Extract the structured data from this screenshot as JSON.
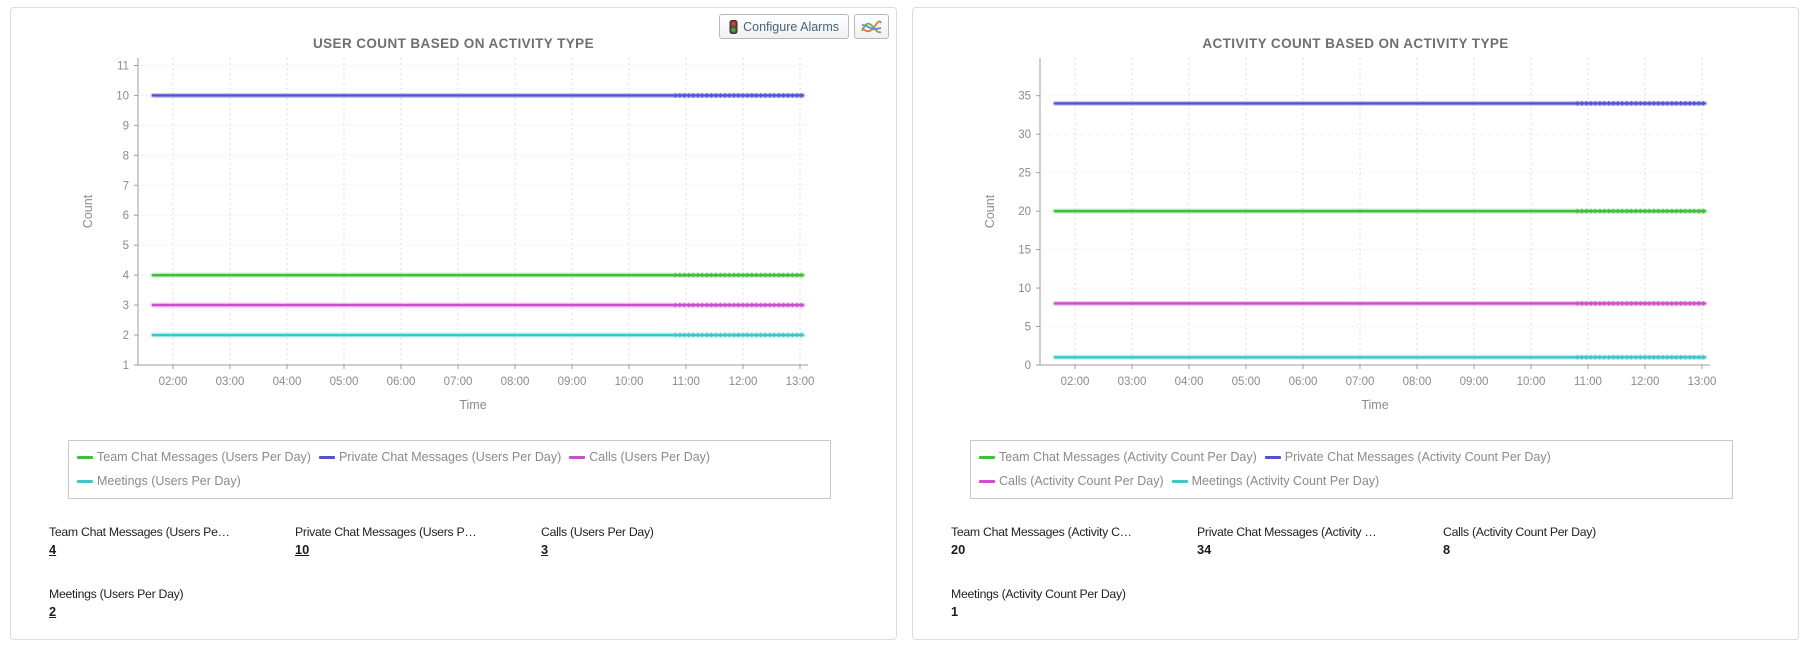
{
  "toolbar": {
    "configure_alarms": "Configure Alarms",
    "icons": {
      "alarm": "traffic-light-icon",
      "chart_type": "spline-chart-icon"
    }
  },
  "colors": {
    "green": "#3dbf3d",
    "blue": "#5252d2",
    "magenta": "#cc4ecc",
    "cyan": "#3cc6c9",
    "axis_text": "#8b8b8b",
    "title_text": "#6f6f6f",
    "grid": "#dedede",
    "axis_line": "#9e9e9e",
    "panel_border": "#dcdcdc",
    "legend_border": "#c9c9c9"
  },
  "chart_data": [
    {
      "type": "line",
      "title": "USER COUNT BASED ON ACTIVITY TYPE",
      "xlabel": "Time",
      "ylabel": "Count",
      "x_ticks": [
        "02:00",
        "03:00",
        "04:00",
        "05:00",
        "06:00",
        "07:00",
        "08:00",
        "09:00",
        "10:00",
        "11:00",
        "12:00",
        "13:00"
      ],
      "x_range_hours": [
        1.35,
        13.15
      ],
      "data_x_span_hours": [
        1.65,
        13.05
      ],
      "ylim": [
        1,
        11.25
      ],
      "y_ticks": [
        1,
        2,
        3,
        4,
        5,
        6,
        7,
        8,
        9,
        10,
        11
      ],
      "grid": true,
      "legend_position": "bottom",
      "series": [
        {
          "name": "Team Chat Messages (Users Per Day)",
          "value": 4,
          "color": "#3dbf3d"
        },
        {
          "name": "Private Chat Messages (Users Per Day)",
          "value": 10,
          "color": "#5252d2"
        },
        {
          "name": "Calls (Users Per Day)",
          "value": 3,
          "color": "#cc4ecc"
        },
        {
          "name": "Meetings (Users Per Day)",
          "value": 2,
          "color": "#3cc6c9"
        }
      ],
      "stats": [
        {
          "label": "Team Chat Messages (Users Pe…",
          "value": "4",
          "link": true
        },
        {
          "label": "Private Chat Messages (Users P…",
          "value": "10",
          "link": true
        },
        {
          "label": "Calls (Users Per Day)",
          "value": "3",
          "link": true
        },
        {
          "label": "Meetings (Users Per Day)",
          "value": "2",
          "link": true
        }
      ]
    },
    {
      "type": "line",
      "title": "ACTIVITY COUNT BASED ON ACTIVITY TYPE",
      "xlabel": "Time",
      "ylabel": "Count",
      "x_ticks": [
        "02:00",
        "03:00",
        "04:00",
        "05:00",
        "06:00",
        "07:00",
        "08:00",
        "09:00",
        "10:00",
        "11:00",
        "12:00",
        "13:00"
      ],
      "x_range_hours": [
        1.35,
        13.15
      ],
      "data_x_span_hours": [
        1.65,
        13.05
      ],
      "ylim": [
        0,
        39.9
      ],
      "y_ticks": [
        0,
        5,
        10,
        15,
        20,
        25,
        30,
        35
      ],
      "grid": true,
      "legend_position": "bottom",
      "series": [
        {
          "name": "Team Chat Messages (Activity Count Per Day)",
          "value": 20,
          "color": "#3dbf3d"
        },
        {
          "name": "Private Chat Messages (Activity Count Per Day)",
          "value": 34,
          "color": "#5252d2"
        },
        {
          "name": "Calls (Activity Count Per Day)",
          "value": 8,
          "color": "#cc4ecc"
        },
        {
          "name": "Meetings (Activity Count Per Day)",
          "value": 1,
          "color": "#3cc6c9"
        }
      ],
      "stats": [
        {
          "label": "Team Chat Messages (Activity C…",
          "value": "20",
          "link": false
        },
        {
          "label": "Private Chat Messages (Activity …",
          "value": "34",
          "link": false
        },
        {
          "label": "Calls (Activity Count Per Day)",
          "value": "8",
          "link": false
        },
        {
          "label": "Meetings (Activity Count Per Day)",
          "value": "1",
          "link": false
        }
      ]
    }
  ]
}
